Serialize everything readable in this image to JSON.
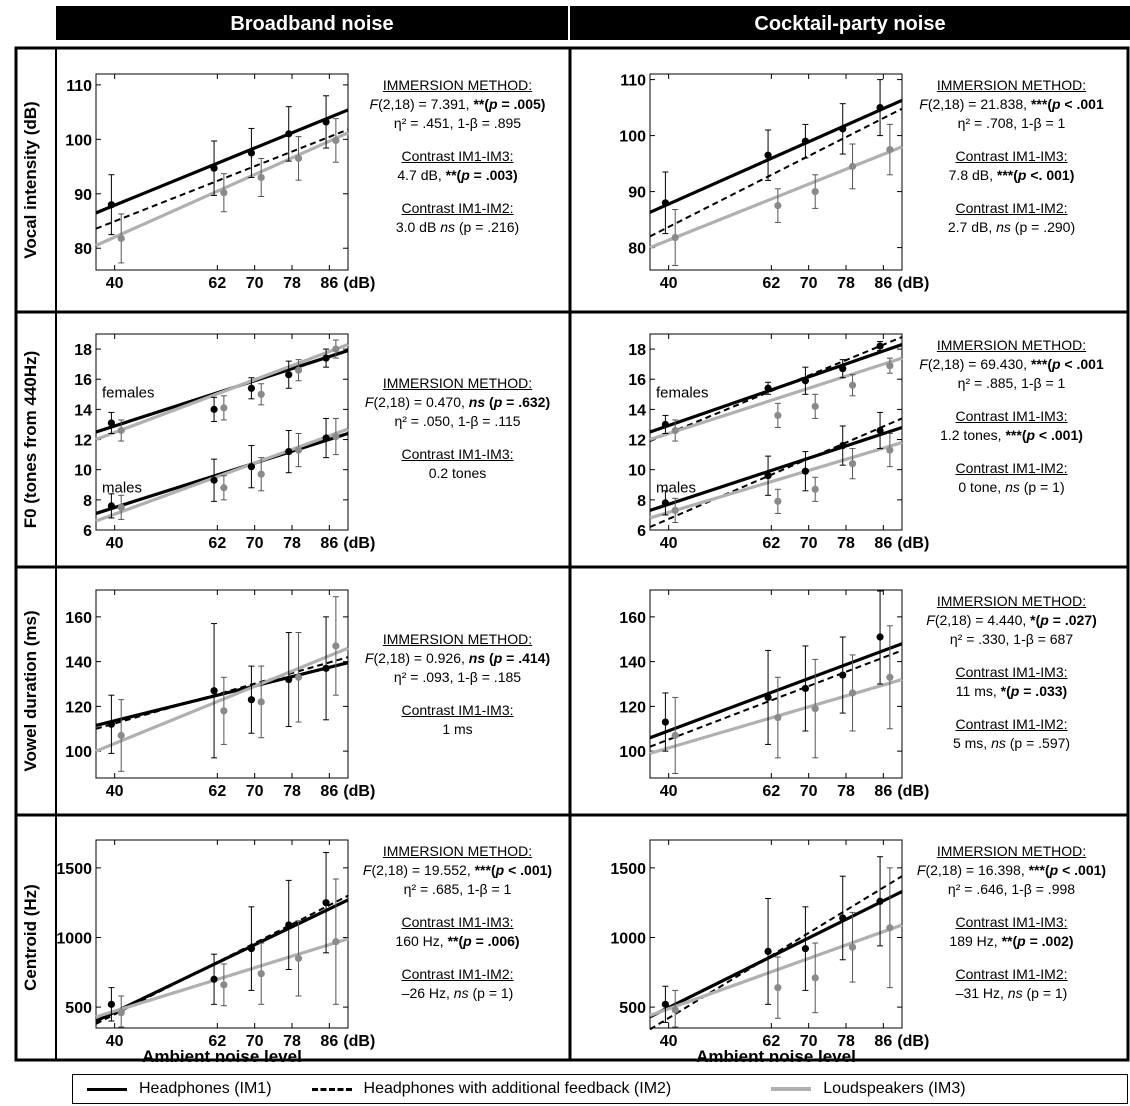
{
  "columns": [
    "Broadband noise",
    "Cocktail-party noise"
  ],
  "x_unit": "(dB)",
  "xlabel": "Ambient noise level",
  "legend": [
    {
      "label": "Headphones (IM1)",
      "style": "solid",
      "color": "#000000"
    },
    {
      "label": "Headphones with additional feedback (IM2)",
      "style": "dashed",
      "color": "#000000"
    },
    {
      "label": "Loudspeakers (IM3)",
      "style": "solid",
      "color": "#b0b0b0"
    }
  ],
  "colors": {
    "IM1": "#000000",
    "IM2": "#000000",
    "IM3": "#b0b0b0"
  },
  "chart_data": [
    {
      "type": "scatter",
      "row": 0,
      "col": 0,
      "ylabel": "Vocal intensity (dB)",
      "x": [
        40,
        62,
        70,
        78,
        86
      ],
      "xticks": [
        40,
        62,
        70,
        78,
        86
      ],
      "ylim": [
        76,
        112
      ],
      "yticks": [
        80,
        90,
        100,
        110
      ],
      "series": [
        {
          "name": "Headphones (IM1)",
          "values": [
            88,
            94.7,
            97.5,
            101,
            103.2
          ],
          "err": [
            5.5,
            5,
            4.5,
            5,
            4.8
          ],
          "fit": [
            86.5,
            105.4
          ]
        },
        {
          "name": "Headphones with additional feedback (IM2)",
          "fit": [
            83.6,
            101.8
          ]
        },
        {
          "name": "Loudspeakers (IM3)",
          "values": [
            81.8,
            90.2,
            93,
            96.5,
            99.8
          ],
          "err": [
            4.5,
            3.5,
            3.5,
            4,
            4
          ],
          "fit": [
            80.5,
            101.2
          ]
        }
      ]
    },
    {
      "type": "scatter",
      "row": 0,
      "col": 1,
      "ylabel": "",
      "x": [
        40,
        62,
        70,
        78,
        86
      ],
      "xticks": [
        40,
        62,
        70,
        78,
        86
      ],
      "ylim": [
        76,
        111
      ],
      "yticks": [
        80,
        90,
        100,
        110
      ],
      "series": [
        {
          "name": "Headphones (IM1)",
          "values": [
            88,
            96.5,
            99,
            101.2,
            105
          ],
          "err": [
            5.5,
            4.5,
            3,
            4.5,
            5
          ],
          "fit": [
            86.3,
            106.3
          ]
        },
        {
          "name": "Headphones with additional feedback (IM2)",
          "fit": [
            82,
            104.8
          ]
        },
        {
          "name": "Loudspeakers (IM3)",
          "values": [
            81.8,
            87.5,
            90,
            94.5,
            97.5
          ],
          "err": [
            5,
            3,
            3,
            4,
            4.5
          ],
          "fit": [
            80,
            98
          ]
        }
      ]
    },
    {
      "type": "scatter",
      "row": 1,
      "col": 0,
      "ylabel": "F0 (tones from 440Hz)",
      "x": [
        40,
        62,
        70,
        78,
        86
      ],
      "xticks": [
        40,
        62,
        70,
        78,
        86
      ],
      "ylim": [
        6,
        19
      ],
      "yticks": [
        6,
        8,
        10,
        12,
        14,
        16,
        18
      ],
      "annotations": [
        "females",
        "males"
      ],
      "series": [
        {
          "name": "Headphones (IM1) females",
          "values": [
            13.1,
            14,
            15.4,
            16.3,
            17.4
          ],
          "err": [
            0.7,
            0.8,
            0.7,
            0.9,
            0.6
          ],
          "fit": [
            12.5,
            17.9
          ]
        },
        {
          "name": "Loudspeakers (IM3) females",
          "values": [
            12.6,
            14.1,
            15,
            16.6,
            18
          ],
          "err": [
            0.7,
            0.8,
            0.7,
            0.7,
            0.6
          ],
          "fit": [
            12,
            18.3
          ]
        },
        {
          "name": "Headphones (IM1) males",
          "values": [
            7.6,
            9.3,
            10.2,
            11.2,
            12.1
          ],
          "err": [
            0.8,
            1.4,
            1.4,
            1.4,
            1.3
          ],
          "fit": [
            7.1,
            12.4
          ]
        },
        {
          "name": "Loudspeakers (IM3) males",
          "values": [
            7.5,
            8.8,
            9.7,
            11.3,
            12.2
          ],
          "err": [
            0.8,
            0.8,
            1.1,
            1.1,
            1.2
          ],
          "fit": [
            6.6,
            12.7
          ]
        }
      ]
    },
    {
      "type": "scatter",
      "row": 1,
      "col": 1,
      "ylabel": "",
      "x": [
        40,
        62,
        70,
        78,
        86
      ],
      "xticks": [
        40,
        62,
        70,
        78,
        86
      ],
      "ylim": [
        6,
        19
      ],
      "yticks": [
        6,
        8,
        10,
        12,
        14,
        16,
        18
      ],
      "annotations": [
        "females",
        "males"
      ],
      "series": [
        {
          "name": "Headphones (IM1) females",
          "values": [
            13,
            15.4,
            15.9,
            16.7,
            18.2
          ],
          "err": [
            0.6,
            0.4,
            0.9,
            0.6,
            0.3
          ],
          "fit": [
            12.5,
            18.3
          ]
        },
        {
          "name": "Headphones with additional feedback (IM2) females",
          "fit": [
            11.9,
            18.8
          ]
        },
        {
          "name": "Loudspeakers (IM3) females",
          "values": [
            12.6,
            13.6,
            14.2,
            15.6,
            16.9
          ],
          "err": [
            0.7,
            0.8,
            0.8,
            0.7,
            0.5
          ],
          "fit": [
            12,
            17.4
          ]
        },
        {
          "name": "Headphones (IM1) males",
          "values": [
            7.8,
            9.6,
            9.9,
            11.6,
            12.6
          ],
          "err": [
            0.8,
            1.3,
            1.3,
            1.3,
            1.2
          ],
          "fit": [
            7.3,
            12.8
          ]
        },
        {
          "name": "Headphones with additional feedback (IM2) males",
          "fit": [
            6.2,
            13.4
          ]
        },
        {
          "name": "Loudspeakers (IM3) males",
          "values": [
            7.3,
            7.9,
            8.7,
            10.4,
            11.3
          ],
          "err": [
            0.8,
            0.8,
            0.8,
            1,
            1.1
          ],
          "fit": [
            6.8,
            11.8
          ]
        }
      ]
    },
    {
      "type": "scatter",
      "row": 2,
      "col": 0,
      "ylabel": "Vowel duration (ms)",
      "x": [
        40,
        62,
        70,
        78,
        86
      ],
      "xticks": [
        40,
        62,
        70,
        78,
        86
      ],
      "ylim": [
        88,
        172
      ],
      "yticks": [
        100,
        120,
        140,
        160
      ],
      "series": [
        {
          "name": "Headphones (IM1)",
          "values": [
            112,
            127,
            123,
            132,
            137
          ],
          "err": [
            13,
            30,
            15,
            21,
            23
          ],
          "fit": [
            111.5,
            139.5
          ]
        },
        {
          "name": "Headphones with additional feedback (IM2)",
          "fit": [
            110,
            142
          ]
        },
        {
          "name": "Loudspeakers (IM3)",
          "values": [
            107,
            118,
            122,
            133,
            147
          ],
          "err": [
            16,
            15,
            16,
            20,
            22
          ],
          "fit": [
            100,
            146
          ]
        }
      ]
    },
    {
      "type": "scatter",
      "row": 2,
      "col": 1,
      "ylabel": "",
      "x": [
        40,
        62,
        70,
        78,
        86
      ],
      "xticks": [
        40,
        62,
        70,
        78,
        86
      ],
      "ylim": [
        88,
        172
      ],
      "yticks": [
        100,
        120,
        140,
        160
      ],
      "series": [
        {
          "name": "Headphones (IM1)",
          "values": [
            113,
            124,
            128,
            134,
            151
          ],
          "err": [
            13,
            21,
            19,
            17,
            21
          ],
          "fit": [
            106,
            148
          ]
        },
        {
          "name": "Headphones with additional feedback (IM2)",
          "fit": [
            102,
            145
          ]
        },
        {
          "name": "Loudspeakers (IM3)",
          "values": [
            107,
            115,
            119,
            126,
            133
          ],
          "err": [
            17,
            18,
            22,
            17,
            23
          ],
          "fit": [
            99,
            132
          ]
        }
      ]
    },
    {
      "type": "scatter",
      "row": 3,
      "col": 0,
      "ylabel": "Centroid (Hz)",
      "x": [
        40,
        62,
        70,
        78,
        86
      ],
      "xticks": [
        40,
        62,
        70,
        78,
        86
      ],
      "ylim": [
        350,
        1700
      ],
      "yticks": [
        500,
        1000,
        1500
      ],
      "series": [
        {
          "name": "Headphones (IM1)",
          "values": [
            520,
            700,
            920,
            1090,
            1250
          ],
          "err": [
            120,
            180,
            300,
            320,
            360
          ],
          "fit": [
            400,
            1270
          ]
        },
        {
          "name": "Headphones with additional feedback (IM2)",
          "fit": [
            380,
            1300
          ]
        },
        {
          "name": "Loudspeakers (IM3)",
          "values": [
            460,
            660,
            740,
            850,
            970
          ],
          "err": [
            120,
            150,
            220,
            270,
            450
          ],
          "fit": [
            430,
            990
          ]
        }
      ]
    },
    {
      "type": "scatter",
      "row": 3,
      "col": 1,
      "ylabel": "",
      "x": [
        40,
        62,
        70,
        78,
        86
      ],
      "xticks": [
        40,
        62,
        70,
        78,
        86
      ],
      "ylim": [
        350,
        1700
      ],
      "yticks": [
        500,
        1000,
        1500
      ],
      "series": [
        {
          "name": "Headphones (IM1)",
          "values": [
            520,
            900,
            920,
            1140,
            1260
          ],
          "err": [
            130,
            380,
            300,
            300,
            320
          ],
          "fit": [
            430,
            1330
          ]
        },
        {
          "name": "Headphones with additional feedback (IM2)",
          "fit": [
            340,
            1440
          ]
        },
        {
          "name": "Loudspeakers (IM3)",
          "values": [
            480,
            640,
            710,
            930,
            1070
          ],
          "err": [
            140,
            220,
            250,
            250,
            430
          ],
          "fit": [
            440,
            1090
          ]
        }
      ]
    }
  ],
  "stats": [
    {
      "title": "IMMERSION METHOD:",
      "f_lhs": "(2,18) = 7.391, ",
      "sig": "**",
      "p": "(p = .005)",
      "eta": "η² = .451, 1-β = .895",
      "c13_title": "Contrast IM1-IM3:",
      "c13_val": "4.7 dB, ",
      "c13_sig": "**(p = .003)",
      "c12_title": "Contrast IM1-IM2:",
      "c12_val": "3.0 dB ",
      "c12_ns": "ns",
      "c12_p": " (p = .216)"
    },
    {
      "title": "IMMERSION METHOD:",
      "f_lhs": "(2,18) = 21.838, ",
      "sig": "***",
      "p": "(p < .001",
      "eta": "η² = .708, 1-β = 1",
      "c13_title": "Contrast IM1-IM3:",
      "c13_val": "7.8 dB, ",
      "c13_sig": "***(p <. 001)",
      "c12_title": "Contrast IM1-IM2:",
      "c12_val": "2.7 dB, ",
      "c12_ns": "ns",
      "c12_p": " (p = .290)"
    },
    {
      "title": "IMMERSION METHOD:",
      "f_lhs": "(2,18) = 0.470, ",
      "sig": "ns",
      "p": "(p = .632)",
      "eta": "η² = .050, 1-β = .115",
      "c13_title": "Contrast IM1-IM3:",
      "c13_val": "0.2 tones",
      "c13_sig": "",
      "c12_title": "",
      "c12_val": "",
      "c12_ns": "",
      "c12_p": ""
    },
    {
      "title": "IMMERSION METHOD:",
      "f_lhs": "(2,18) = 69.430, ",
      "sig": "***",
      "p": "(p < .001",
      "eta": "η² = .885, 1-β = 1",
      "c13_title": "Contrast IM1-IM3:",
      "c13_val": "1.2 tones, ",
      "c13_sig": "***(p < .001)",
      "c12_title": "Contrast IM1-IM2:",
      "c12_val": "0 tone, ",
      "c12_ns": "ns",
      "c12_p": " (p = 1)"
    },
    {
      "title": "IMMERSION METHOD:",
      "f_lhs": "(2,18) = 0.926, ",
      "sig": "ns",
      "p": "(p = .414)",
      "eta": "η² = .093, 1-β = .185",
      "c13_title": "Contrast IM1-IM3:",
      "c13_val": "1 ms",
      "c13_sig": "",
      "c12_title": "",
      "c12_val": "",
      "c12_ns": "",
      "c12_p": ""
    },
    {
      "title": "IMMERSION METHOD:",
      "f_lhs": "(2,18) = 4.440, ",
      "sig": "*",
      "p": "(p = .027)",
      "eta": "η² = .330, 1-β = 687",
      "c13_title": "Contrast IM1-IM3:",
      "c13_val": "11 ms, ",
      "c13_sig": "*(p = .033)",
      "c12_title": "Contrast IM1-IM2:",
      "c12_val": "5 ms, ",
      "c12_ns": "ns",
      "c12_p": " (p = .597)"
    },
    {
      "title": "IMMERSION METHOD:",
      "f_lhs": "(2,18) = 19.552, ",
      "sig": "***",
      "p": "(p < .001)",
      "eta": "η² = .685, 1-β = 1",
      "c13_title": "Contrast IM1-IM3:",
      "c13_val": "160 Hz, ",
      "c13_sig": "**(p = .006)",
      "c12_title": "Contrast IM1-IM2:",
      "c12_val": "–26 Hz, ",
      "c12_ns": "ns",
      "c12_p": " (p = 1)"
    },
    {
      "title": "IMMERSION METHOD:",
      "f_lhs": "(2,18) = 16.398, ",
      "sig": "***",
      "p": "(p < .001)",
      "eta": "η² = .646, 1-β = .998",
      "c13_title": "Contrast IM1-IM3:",
      "c13_val": "189 Hz, ",
      "c13_sig": "**(p = .002)",
      "c12_title": "Contrast IM1-IM2:",
      "c12_val": "–31 Hz, ",
      "c12_ns": "ns",
      "c12_p": " (p = 1)"
    }
  ]
}
